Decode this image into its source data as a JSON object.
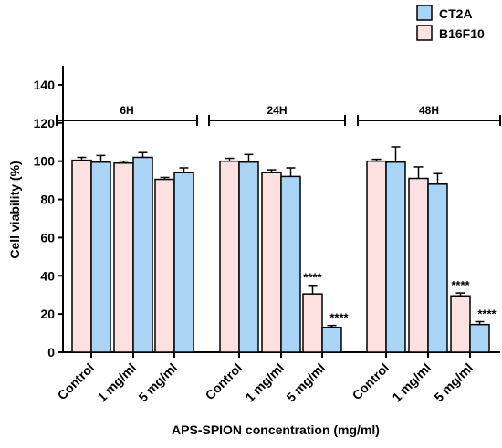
{
  "chart_data": {
    "type": "bar",
    "title": "",
    "xlabel": "APS-SPION concentration (mg/ml)",
    "ylabel": "Cell viability (%)",
    "ylim": [
      0,
      150
    ],
    "yticks": [
      0,
      20,
      40,
      60,
      80,
      100,
      120,
      140
    ],
    "categories": [
      "Control",
      "1 mg/ml",
      "5 mg/ml",
      "Control",
      "1 mg/ml",
      "5 mg/ml",
      "Control",
      "1 mg/ml",
      "5 mg/ml"
    ],
    "groups": [
      {
        "label": "6H",
        "category_range": [
          0,
          2
        ]
      },
      {
        "label": "24H",
        "category_range": [
          3,
          5
        ]
      },
      {
        "label": "48H",
        "category_range": [
          6,
          8
        ]
      }
    ],
    "legend_position": "top-right",
    "series": [
      {
        "name": "B16F10",
        "color": "#fde0e0",
        "values": [
          100.5,
          99,
          90.5,
          100,
          94,
          30.5,
          100,
          91,
          29.5
        ],
        "errors": [
          1.5,
          1,
          1,
          1.5,
          1.5,
          4.5,
          1,
          6,
          1.5
        ],
        "significance": [
          "",
          "",
          "",
          "",
          "",
          "****",
          "",
          "",
          "****"
        ]
      },
      {
        "name": "CT2A",
        "color": "#a9d4f5",
        "values": [
          99.5,
          102,
          94,
          99.5,
          92,
          13,
          99.5,
          88,
          14.5
        ],
        "errors": [
          3.5,
          2.5,
          2.5,
          4,
          4.5,
          1,
          8,
          5.5,
          1.5
        ],
        "significance": [
          "",
          "",
          "",
          "",
          "",
          "****",
          "",
          "",
          "****"
        ]
      }
    ],
    "legend": [
      {
        "name": "CT2A",
        "color": "#a9d4f5"
      },
      {
        "name": "B16F10",
        "color": "#fde0e0"
      }
    ]
  }
}
